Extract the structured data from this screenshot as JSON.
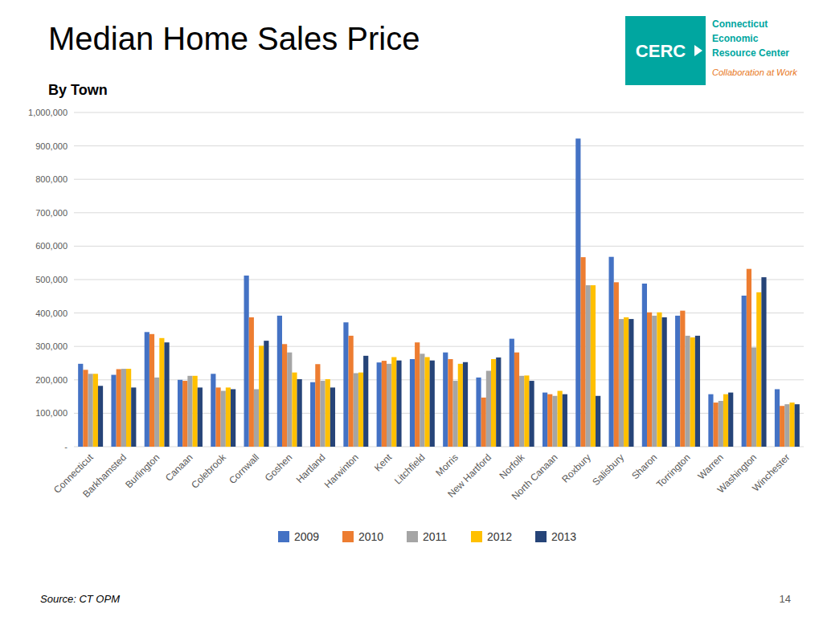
{
  "chart_data": {
    "type": "bar",
    "title": "Median Home Sales Price",
    "subtitle": "By Town",
    "annotations": [
      "Source: CT OPM",
      "14",
      "CERC",
      "Connecticut",
      "Economic",
      "Resource Center",
      "Collaboration at Work"
    ],
    "categories": [
      "Connecticut",
      "Barkhamsted",
      "Burlington",
      "Canaan",
      "Colebrook",
      "Cornwall",
      "Goshen",
      "Hartland",
      "Harwinton",
      "Kent",
      "Litchfield",
      "Morris",
      "New Hartford",
      "Norfolk",
      "North Canaan",
      "Roxbury",
      "Salisbury",
      "Sharon",
      "Torrington",
      "Warren",
      "Washington",
      "Winchester"
    ],
    "series": [
      {
        "name": "2009",
        "color": "#4472C4",
        "values": [
          248000,
          215000,
          343000,
          200000,
          218000,
          512000,
          392000,
          193000,
          372000,
          252000,
          262000,
          282000,
          207000,
          323000,
          162000,
          922000,
          568000,
          488000,
          392000,
          157000,
          452000,
          172000
        ]
      },
      {
        "name": "2010",
        "color": "#ED7D31",
        "values": [
          230000,
          232000,
          337000,
          197000,
          177000,
          387000,
          307000,
          247000,
          332000,
          257000,
          312000,
          262000,
          147000,
          282000,
          157000,
          567000,
          492000,
          402000,
          407000,
          132000,
          532000,
          122000
        ]
      },
      {
        "name": "2011",
        "color": "#A5A5A5",
        "values": [
          218000,
          233000,
          207000,
          212000,
          167000,
          172000,
          282000,
          197000,
          220000,
          248000,
          278000,
          197000,
          227000,
          212000,
          152000,
          483000,
          382000,
          392000,
          332000,
          137000,
          297000,
          127000
        ]
      },
      {
        "name": "2012",
        "color": "#FFC000",
        "values": [
          218000,
          233000,
          325000,
          212000,
          177000,
          302000,
          222000,
          202000,
          222000,
          268000,
          268000,
          248000,
          262000,
          213000,
          167000,
          483000,
          387000,
          402000,
          327000,
          157000,
          462000,
          132000
        ]
      },
      {
        "name": "2013",
        "color": "#264478",
        "values": [
          182000,
          177000,
          312000,
          177000,
          172000,
          317000,
          202000,
          177000,
          272000,
          258000,
          258000,
          253000,
          267000,
          197000,
          157000,
          152000,
          382000,
          387000,
          332000,
          162000,
          507000,
          127000
        ]
      }
    ],
    "ylim": [
      0,
      1000000
    ],
    "yticks": [
      {
        "value": 0,
        "label": "-"
      },
      {
        "value": 100000,
        "label": "100,000"
      },
      {
        "value": 200000,
        "label": "200,000"
      },
      {
        "value": 300000,
        "label": "300,000"
      },
      {
        "value": 400000,
        "label": "400,000"
      },
      {
        "value": 500000,
        "label": "500,000"
      },
      {
        "value": 600000,
        "label": "600,000"
      },
      {
        "value": 700000,
        "label": "700,000"
      },
      {
        "value": 800000,
        "label": "800,000"
      },
      {
        "value": 900000,
        "label": "900,000"
      },
      {
        "value": 1000000,
        "label": "1,000,000"
      }
    ],
    "grid": true,
    "legend": "bottom"
  }
}
